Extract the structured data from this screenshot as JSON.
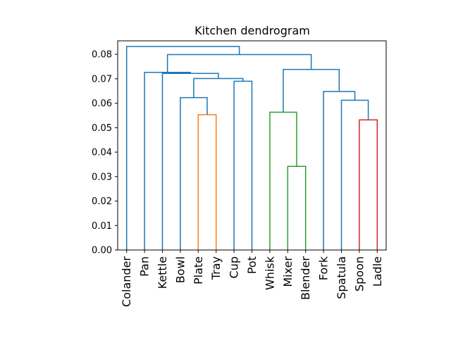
{
  "chart_data": {
    "type": "dendrogram",
    "title": "Kitchen dendrogram",
    "xlabel": "",
    "ylabel": "",
    "ylim": [
      0,
      0.0855
    ],
    "yticks": [
      "0.00",
      "0.01",
      "0.02",
      "0.03",
      "0.04",
      "0.05",
      "0.06",
      "0.07",
      "0.08"
    ],
    "leaves": [
      "Colander",
      "Pan",
      "Kettle",
      "Bowl",
      "Plate",
      "Tray",
      "Cup",
      "Pot",
      "Whisk",
      "Mixer",
      "Blender",
      "Fork",
      "Spatula",
      "Spoon",
      "Ladle"
    ],
    "colors": {
      "above_threshold": "#1f77b4",
      "cluster_plate_tray": "#ff7f0e",
      "cluster_whisk_mixer_blender": "#2ca02c",
      "cluster_spoon_ladle": "#d62728"
    },
    "links": [
      {
        "left": "Plate",
        "right": "Tray",
        "height": 0.0553,
        "color": "#ff7f0e"
      },
      {
        "left": "Bowl",
        "right": "Plate+Tray",
        "height": 0.0623,
        "color": "#1f77b4"
      },
      {
        "left": "Cup",
        "right": "Pot",
        "height": 0.069,
        "color": "#1f77b4"
      },
      {
        "left": "Bowl..Tray",
        "right": "Cup+Pot",
        "height": 0.0701,
        "color": "#1f77b4"
      },
      {
        "left": "Kettle",
        "right": "Bowl..Pot",
        "height": 0.0722,
        "color": "#1f77b4"
      },
      {
        "left": "Pan",
        "right": "Kettle..Pot",
        "height": 0.0726,
        "color": "#1f77b4"
      },
      {
        "left": "Mixer",
        "right": "Blender",
        "height": 0.0342,
        "color": "#2ca02c"
      },
      {
        "left": "Whisk",
        "right": "Mixer+Blender",
        "height": 0.0563,
        "color": "#2ca02c"
      },
      {
        "left": "Spoon",
        "right": "Ladle",
        "height": 0.0532,
        "color": "#d62728"
      },
      {
        "left": "Spatula",
        "right": "Spoon+Ladle",
        "height": 0.0612,
        "color": "#1f77b4"
      },
      {
        "left": "Fork",
        "right": "Spatula..Ladle",
        "height": 0.0648,
        "color": "#1f77b4"
      },
      {
        "left": "Whisk..Blender",
        "right": "Fork..Ladle",
        "height": 0.0738,
        "color": "#1f77b4"
      },
      {
        "left": "Pan..Pot",
        "right": "Whisk..Ladle",
        "height": 0.0799,
        "color": "#1f77b4"
      },
      {
        "left": "Colander",
        "right": "Pan..Ladle",
        "height": 0.0832,
        "color": "#1f77b4"
      }
    ]
  }
}
